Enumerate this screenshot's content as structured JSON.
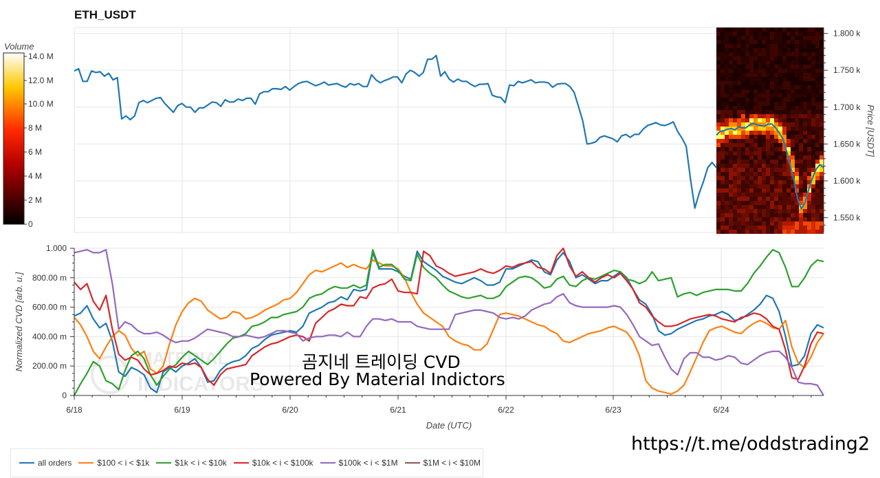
{
  "title": "ETH_USDT",
  "overlay_line1": "곰지네 트레이딩 CVD",
  "overlay_line2": "Powered By Material Indictors",
  "link": "https://t.me/oddstrading2",
  "watermark": "MATERIAL INDICATORS",
  "chart_data": [
    {
      "type": "line",
      "title": "ETH_USDT",
      "xlabel": "",
      "ylabel": "Price [USDT]",
      "ylim": [
        1530,
        1808
      ],
      "yticks": [
        "1.550 k",
        "1.600 k",
        "1.650 k",
        "1.700 k",
        "1.750 k",
        "1.800 k"
      ],
      "ytick_values": [
        1550,
        1600,
        1650,
        1700,
        1750,
        1800
      ],
      "series": [
        {
          "color": "#1f77b4",
          "values": [
            1749,
            1752,
            1735,
            1735,
            1749,
            1747,
            1748,
            1742,
            1746,
            1737,
            1740,
            1684,
            1688,
            1683,
            1688,
            1706,
            1709,
            1706,
            1709,
            1712,
            1713,
            1705,
            1699,
            1693,
            1702,
            1705,
            1700,
            1700,
            1693,
            1699,
            1699,
            1703,
            1707,
            1706,
            1701,
            1710,
            1707,
            1707,
            1711,
            1709,
            1712,
            1712,
            1704,
            1718,
            1721,
            1721,
            1725,
            1725,
            1724,
            1728,
            1723,
            1728,
            1732,
            1734,
            1735,
            1732,
            1729,
            1731,
            1734,
            1730,
            1731,
            1732,
            1729,
            1727,
            1732,
            1730,
            1732,
            1728,
            1728,
            1744,
            1737,
            1733,
            1736,
            1738,
            1741,
            1741,
            1733,
            1745,
            1750,
            1747,
            1742,
            1747,
            1765,
            1765,
            1770,
            1742,
            1748,
            1738,
            1734,
            1738,
            1735,
            1735,
            1731,
            1728,
            1731,
            1731,
            1732,
            1716,
            1714,
            1713,
            1706,
            1730,
            1729,
            1735,
            1733,
            1735,
            1737,
            1733,
            1734,
            1734,
            1733,
            1727,
            1731,
            1732,
            1732,
            1728,
            1720,
            1701,
            1681,
            1650,
            1651,
            1653,
            1659,
            1661,
            1659,
            1657,
            1653,
            1661,
            1663,
            1659,
            1663,
            1663,
            1670,
            1675,
            1677,
            1679,
            1676,
            1675,
            1677,
            1680,
            1667,
            1658,
            1647,
            1602,
            1563,
            1583,
            1599,
            1618,
            1625,
            1618
          ]
        },
        {
          "color": "#1f77b4",
          "values": [
            1662,
            1667,
            1668,
            1670,
            1671,
            1669,
            1673,
            1672,
            1672,
            1676,
            1678,
            1676,
            1675,
            1674,
            1677,
            1677,
            1672,
            1665,
            1657,
            1640,
            1620,
            1600,
            1575,
            1562,
            1571,
            1589,
            1604,
            1616,
            1622,
            1618
          ]
        }
      ],
      "heatmap_colorbar": {
        "label": "Volume",
        "ticks": [
          "0",
          "2 M",
          "4 M",
          "6 M",
          "8 M",
          "10.0 M",
          "12.0 M",
          "14.0 M"
        ],
        "range": [
          0,
          14
        ]
      }
    },
    {
      "type": "line",
      "xlabel": "Date (UTC)",
      "ylabel": "Normalized CVD [arb. u.]",
      "ylim": [
        0,
        1
      ],
      "xticks": [
        "6/18",
        "6/19",
        "6/20",
        "6/21",
        "6/22",
        "6/23",
        "6/24"
      ],
      "yticks": [
        "0",
        "200.00 m",
        "400.00 m",
        "600.00 m",
        "800.00 m",
        "1.000"
      ],
      "ytick_values": [
        0,
        0.2,
        0.4,
        0.6,
        0.8,
        1.0
      ],
      "legend_position": "bottom",
      "series": [
        {
          "name": "all orders",
          "color": "#1f77b4",
          "values": [
            0.54,
            0.56,
            0.61,
            0.52,
            0.46,
            0.49,
            0.37,
            0.16,
            0.13,
            0.19,
            0.17,
            0.14,
            0.05,
            0.02,
            0.16,
            0.19,
            0.16,
            0.2,
            0.22,
            0.25,
            0.19,
            0.09,
            0.1,
            0.17,
            0.21,
            0.23,
            0.24,
            0.27,
            0.32,
            0.34,
            0.38,
            0.41,
            0.42,
            0.43,
            0.44,
            0.43,
            0.47,
            0.56,
            0.58,
            0.6,
            0.63,
            0.64,
            0.67,
            0.65,
            0.72,
            0.71,
            0.72,
            0.97,
            0.86,
            0.86,
            0.86,
            0.84,
            0.81,
            0.79,
            0.98,
            0.91,
            0.88,
            0.85,
            0.81,
            0.79,
            0.77,
            0.76,
            0.78,
            0.8,
            0.78,
            0.75,
            0.75,
            0.77,
            0.86,
            0.86,
            0.88,
            0.9,
            0.92,
            0.91,
            0.84,
            0.82,
            0.92,
            0.97,
            0.91,
            0.8,
            0.82,
            0.79,
            0.76,
            0.78,
            0.78,
            0.81,
            0.84,
            0.8,
            0.72,
            0.65,
            0.62,
            0.55,
            0.44,
            0.41,
            0.42,
            0.45,
            0.47,
            0.49,
            0.51,
            0.52,
            0.54,
            0.55,
            0.57,
            0.55,
            0.51,
            0.52,
            0.55,
            0.58,
            0.62,
            0.68,
            0.66,
            0.57,
            0.4,
            0.2,
            0.21,
            0.27,
            0.42,
            0.48,
            0.46
          ]
        },
        {
          "name": "$100 < i < $1k",
          "color": "#ff7f0e",
          "values": [
            0.53,
            0.48,
            0.4,
            0.3,
            0.25,
            0.33,
            0.4,
            0.44,
            0.41,
            0.32,
            0.27,
            0.3,
            0.18,
            0.15,
            0.2,
            0.35,
            0.48,
            0.57,
            0.63,
            0.66,
            0.64,
            0.58,
            0.55,
            0.52,
            0.53,
            0.57,
            0.56,
            0.52,
            0.53,
            0.55,
            0.58,
            0.6,
            0.62,
            0.65,
            0.66,
            0.7,
            0.76,
            0.82,
            0.85,
            0.84,
            0.86,
            0.88,
            0.9,
            0.87,
            0.89,
            0.87,
            0.86,
            0.92,
            0.9,
            0.88,
            0.88,
            0.86,
            0.8,
            0.7,
            0.62,
            0.56,
            0.53,
            0.5,
            0.47,
            0.4,
            0.37,
            0.35,
            0.34,
            0.31,
            0.31,
            0.35,
            0.45,
            0.55,
            0.56,
            0.55,
            0.54,
            0.52,
            0.5,
            0.48,
            0.47,
            0.44,
            0.42,
            0.37,
            0.36,
            0.38,
            0.4,
            0.42,
            0.43,
            0.44,
            0.46,
            0.47,
            0.45,
            0.43,
            0.37,
            0.27,
            0.1,
            0.05,
            0.03,
            0.02,
            0.01,
            0.03,
            0.07,
            0.16,
            0.26,
            0.36,
            0.44,
            0.46,
            0.47,
            0.45,
            0.43,
            0.42,
            0.46,
            0.49,
            0.51,
            0.49,
            0.46,
            0.45,
            0.51,
            0.33,
            0.22,
            0.19,
            0.26,
            0.36,
            0.42
          ]
        },
        {
          "name": "$1k < i < $10k",
          "color": "#2ca02c",
          "values": [
            0.0,
            0.08,
            0.15,
            0.23,
            0.2,
            0.1,
            0.08,
            0.04,
            0.17,
            0.27,
            0.3,
            0.25,
            0.14,
            0.07,
            0.13,
            0.18,
            0.21,
            0.26,
            0.3,
            0.27,
            0.24,
            0.21,
            0.25,
            0.3,
            0.35,
            0.39,
            0.4,
            0.42,
            0.47,
            0.48,
            0.5,
            0.53,
            0.53,
            0.55,
            0.56,
            0.57,
            0.6,
            0.66,
            0.68,
            0.69,
            0.72,
            0.74,
            0.73,
            0.73,
            0.75,
            0.73,
            0.75,
            0.99,
            0.87,
            0.89,
            0.89,
            0.85,
            0.79,
            0.78,
            0.96,
            0.87,
            0.83,
            0.8,
            0.75,
            0.71,
            0.69,
            0.67,
            0.66,
            0.67,
            0.68,
            0.66,
            0.66,
            0.68,
            0.74,
            0.77,
            0.8,
            0.81,
            0.8,
            0.77,
            0.73,
            0.74,
            0.79,
            0.81,
            0.75,
            0.74,
            0.78,
            0.8,
            0.79,
            0.81,
            0.83,
            0.85,
            0.84,
            0.79,
            0.78,
            0.76,
            0.78,
            0.84,
            0.78,
            0.79,
            0.8,
            0.67,
            0.69,
            0.7,
            0.68,
            0.7,
            0.71,
            0.72,
            0.72,
            0.72,
            0.71,
            0.71,
            0.76,
            0.83,
            0.88,
            0.94,
            0.99,
            0.97,
            0.87,
            0.74,
            0.74,
            0.8,
            0.88,
            0.92,
            0.91
          ]
        },
        {
          "name": "$10k < i < $100k",
          "color": "#d62728",
          "values": [
            0.77,
            0.72,
            0.76,
            0.64,
            0.58,
            0.68,
            0.45,
            0.28,
            0.24,
            0.26,
            0.24,
            0.18,
            0.14,
            0.15,
            0.17,
            0.2,
            0.19,
            0.22,
            0.21,
            0.22,
            0.19,
            0.11,
            0.07,
            0.14,
            0.18,
            0.19,
            0.2,
            0.21,
            0.27,
            0.3,
            0.33,
            0.35,
            0.36,
            0.38,
            0.4,
            0.41,
            0.4,
            0.37,
            0.49,
            0.53,
            0.57,
            0.59,
            0.62,
            0.61,
            0.61,
            0.67,
            0.66,
            0.73,
            0.75,
            0.76,
            0.79,
            0.71,
            0.7,
            0.7,
            0.69,
            0.98,
            0.95,
            0.88,
            0.86,
            0.83,
            0.81,
            0.82,
            0.83,
            0.84,
            0.86,
            0.84,
            0.83,
            0.85,
            0.88,
            0.87,
            0.89,
            0.9,
            0.91,
            0.87,
            0.86,
            0.83,
            0.95,
            1.0,
            0.88,
            0.81,
            0.84,
            0.8,
            0.77,
            0.8,
            0.82,
            0.8,
            0.83,
            0.78,
            0.72,
            0.63,
            0.6,
            0.54,
            0.5,
            0.47,
            0.47,
            0.48,
            0.5,
            0.52,
            0.53,
            0.54,
            0.55,
            0.54,
            0.52,
            0.51,
            0.5,
            0.53,
            0.54,
            0.56,
            0.55,
            0.52,
            0.47,
            0.45,
            0.31,
            0.12,
            0.11,
            0.2,
            0.35,
            0.43,
            0.42
          ]
        },
        {
          "name": "$100k < i < $1M",
          "color": "#9467bd",
          "values": [
            0.97,
            0.98,
            0.99,
            0.97,
            0.97,
            0.99,
            0.76,
            0.45,
            0.5,
            0.48,
            0.44,
            0.42,
            0.42,
            0.43,
            0.41,
            0.38,
            0.36,
            0.37,
            0.37,
            0.39,
            0.42,
            0.45,
            0.44,
            0.43,
            0.42,
            0.4,
            0.4,
            0.41,
            0.4,
            0.39,
            0.4,
            0.42,
            0.44,
            0.44,
            0.43,
            0.42,
            0.37,
            0.39,
            0.4,
            0.4,
            0.41,
            0.41,
            0.4,
            0.43,
            0.4,
            0.4,
            0.47,
            0.52,
            0.52,
            0.51,
            0.52,
            0.5,
            0.5,
            0.5,
            0.47,
            0.46,
            0.45,
            0.45,
            0.45,
            0.45,
            0.55,
            0.56,
            0.57,
            0.58,
            0.58,
            0.57,
            0.56,
            0.53,
            0.52,
            0.53,
            0.52,
            0.54,
            0.58,
            0.6,
            0.62,
            0.63,
            0.67,
            0.69,
            0.63,
            0.61,
            0.6,
            0.6,
            0.6,
            0.6,
            0.6,
            0.61,
            0.6,
            0.55,
            0.48,
            0.4,
            0.37,
            0.34,
            0.35,
            0.26,
            0.18,
            0.14,
            0.25,
            0.29,
            0.29,
            0.26,
            0.26,
            0.24,
            0.25,
            0.27,
            0.26,
            0.22,
            0.21,
            0.24,
            0.27,
            0.29,
            0.3,
            0.3,
            0.26,
            0.19,
            0.09,
            0.08,
            0.08,
            0.07,
            0.0
          ]
        }
      ]
    }
  ],
  "legend": [
    {
      "label": "all orders",
      "color": "#1f77b4"
    },
    {
      "label": "$100 < i < $1k",
      "color": "#ff7f0e"
    },
    {
      "label": "$1k < i < $10k",
      "color": "#2ca02c"
    },
    {
      "label": "$10k < i < $100k",
      "color": "#d62728"
    },
    {
      "label": "$100k < i < $1M",
      "color": "#9467bd"
    },
    {
      "label": "$1M < i < $10M",
      "color": "#8c564b"
    }
  ]
}
